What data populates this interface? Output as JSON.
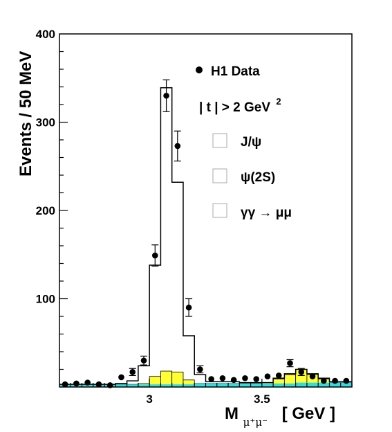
{
  "chart_data": {
    "type": "histogram",
    "xlim": [
      2.6,
      3.9
    ],
    "ylim": [
      0,
      400
    ],
    "bin_width": 0.05,
    "bin_edges": [
      2.6,
      2.65,
      2.7,
      2.75,
      2.8,
      2.85,
      2.9,
      2.95,
      3.0,
      3.05,
      3.1,
      3.15,
      3.2,
      3.25,
      3.3,
      3.35,
      3.4,
      3.45,
      3.5,
      3.55,
      3.6,
      3.65,
      3.7,
      3.75,
      3.8,
      3.85,
      3.9
    ],
    "x_ticks": [
      {
        "value": 3.0,
        "label": "3"
      },
      {
        "value": 3.5,
        "label": "3.5"
      }
    ],
    "y_ticks": [
      {
        "value": 100,
        "label": "100"
      },
      {
        "value": 200,
        "label": "200"
      },
      {
        "value": 300,
        "label": "300"
      },
      {
        "value": 400,
        "label": "400"
      }
    ],
    "xlabel": {
      "main": "M",
      "sub": "μ⁺μ⁻",
      "unit": "[ GeV ]"
    },
    "ylabel": "Events / 50 MeV",
    "data_points": {
      "name": "H1 Data",
      "x": [
        2.625,
        2.675,
        2.725,
        2.775,
        2.825,
        2.875,
        2.925,
        2.975,
        3.025,
        3.075,
        3.125,
        3.175,
        3.225,
        3.275,
        3.325,
        3.375,
        3.425,
        3.475,
        3.525,
        3.575,
        3.625,
        3.675,
        3.725,
        3.775,
        3.825,
        3.875
      ],
      "y": [
        3,
        4,
        5,
        3,
        2,
        11,
        17,
        30,
        149,
        330,
        273,
        90,
        20,
        9,
        10,
        8,
        10,
        9,
        12,
        13,
        27,
        17,
        12,
        7,
        7,
        7
      ],
      "err": [
        0,
        0,
        0,
        0,
        0,
        0,
        4,
        5,
        12,
        18,
        17,
        10,
        4,
        0,
        0,
        0,
        0,
        0,
        0,
        0,
        4,
        4,
        0,
        0,
        0,
        0
      ]
    },
    "total_mc": [
      3,
      3,
      3,
      3,
      3,
      4,
      7,
      24,
      138,
      339,
      232,
      58,
      14,
      6,
      6,
      6,
      5,
      5,
      5,
      10,
      15,
      20,
      15,
      10,
      6,
      6
    ],
    "psi2s_mc": [
      3,
      3,
      3,
      3,
      3,
      3,
      3,
      4,
      12,
      18,
      17,
      8,
      4,
      4,
      4,
      4,
      4,
      4,
      5,
      9,
      14,
      20,
      14,
      9,
      5,
      5
    ],
    "gammagamma_mc": [
      3,
      3,
      3,
      3,
      3,
      3,
      3,
      3,
      3,
      3,
      3,
      3,
      4,
      4,
      4,
      4,
      4,
      4,
      4,
      4,
      4,
      5,
      5,
      5,
      5,
      5
    ],
    "legend": {
      "data": "H1 Data",
      "cut_text": "| t |  >   2 GeV",
      "cut_sup": "2",
      "entries": [
        {
          "label": "J/ψ",
          "fill": "#ffffff"
        },
        {
          "label": "ψ(2S)",
          "fill": "#ffffff"
        },
        {
          "label": "γγ → μμ",
          "fill": "#ffffff"
        }
      ]
    },
    "colors": {
      "total": "#000000",
      "psi2s": "#ffff33",
      "gammagamma": "#33dddd",
      "data": "#000000"
    }
  }
}
